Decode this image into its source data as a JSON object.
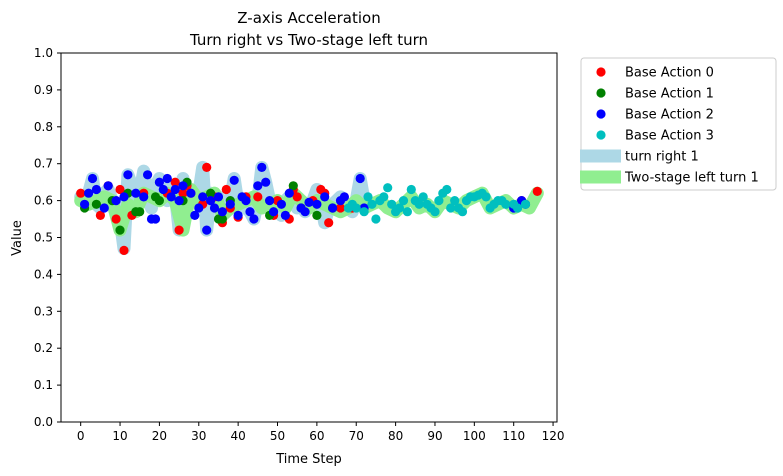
{
  "chart_data": {
    "type": "scatter",
    "title": "Z-axis Acceleration",
    "subtitle": "Turn right vs Two-stage left turn",
    "xlabel": "Time Step",
    "ylabel": "Value",
    "xlim": [
      -5,
      121
    ],
    "ylim": [
      0,
      1
    ],
    "xticks": [
      0,
      10,
      20,
      30,
      40,
      50,
      60,
      70,
      80,
      90,
      100,
      110,
      120
    ],
    "yticks": [
      0.0,
      0.1,
      0.2,
      0.3,
      0.4,
      0.5,
      0.6,
      0.7,
      0.8,
      0.9,
      1.0
    ],
    "ytick_labels": [
      "0.0",
      "0.1",
      "0.2",
      "0.3",
      "0.4",
      "0.5",
      "0.6",
      "0.7",
      "0.8",
      "0.9",
      "1.0"
    ],
    "grid": false,
    "legend_position": "outside right, top",
    "bands": [
      {
        "name": "turn right 1",
        "color": "#add8e6",
        "x": [
          0,
          1,
          2,
          3,
          4,
          5,
          6,
          7,
          8,
          9,
          10,
          11,
          12,
          13,
          14,
          15,
          16,
          17,
          18,
          19,
          20,
          21,
          22,
          23,
          24,
          25,
          26,
          27,
          28,
          29,
          30,
          31,
          32,
          33,
          34,
          35,
          36,
          37,
          38,
          39,
          40,
          41,
          42,
          43,
          44,
          45,
          46,
          47,
          48,
          49,
          50,
          51,
          52,
          53,
          54,
          55,
          56,
          57,
          58,
          59,
          60,
          61,
          62,
          63,
          64,
          65,
          66,
          67,
          68,
          69,
          70,
          71,
          72
        ],
        "y": [
          0.61,
          0.6,
          0.62,
          0.66,
          0.59,
          0.58,
          0.62,
          0.63,
          0.6,
          0.59,
          0.55,
          0.47,
          0.67,
          0.64,
          0.58,
          0.62,
          0.68,
          0.61,
          0.58,
          0.64,
          0.66,
          0.62,
          0.6,
          0.64,
          0.62,
          0.52,
          0.66,
          0.6,
          0.62,
          0.6,
          0.62,
          0.69,
          0.52,
          0.62,
          0.6,
          0.61,
          0.58,
          0.57,
          0.6,
          0.66,
          0.59,
          0.6,
          0.58,
          0.57,
          0.55,
          0.6,
          0.69,
          0.65,
          0.6,
          0.57,
          0.58,
          0.56,
          0.6,
          0.61,
          0.62,
          0.58,
          0.59,
          0.57,
          0.59,
          0.6,
          0.63,
          0.6,
          0.54,
          0.58,
          0.59,
          0.6,
          0.61,
          0.58,
          0.59,
          0.57,
          0.6,
          0.66,
          0.6
        ]
      },
      {
        "name": "Two-stage left turn 1",
        "color": "#90ee90",
        "x": [
          0,
          2,
          4,
          6,
          8,
          10,
          12,
          14,
          16,
          18,
          20,
          22,
          24,
          26,
          28,
          30,
          32,
          34,
          36,
          38,
          40,
          42,
          44,
          46,
          48,
          50,
          52,
          54,
          56,
          58,
          60,
          62,
          64,
          66,
          68,
          70,
          72,
          74,
          76,
          78,
          80,
          82,
          84,
          86,
          88,
          90,
          92,
          94,
          96,
          98,
          100,
          102,
          104,
          106,
          108,
          110,
          112,
          114,
          116
        ],
        "y": [
          0.6,
          0.59,
          0.6,
          0.61,
          0.6,
          0.52,
          0.59,
          0.57,
          0.62,
          0.61,
          0.6,
          0.62,
          0.6,
          0.52,
          0.63,
          0.6,
          0.61,
          0.62,
          0.56,
          0.58,
          0.59,
          0.6,
          0.61,
          0.58,
          0.59,
          0.6,
          0.58,
          0.62,
          0.6,
          0.58,
          0.6,
          0.59,
          0.58,
          0.57,
          0.58,
          0.6,
          0.58,
          0.59,
          0.6,
          0.58,
          0.57,
          0.59,
          0.61,
          0.58,
          0.59,
          0.57,
          0.6,
          0.59,
          0.58,
          0.6,
          0.61,
          0.62,
          0.58,
          0.59,
          0.6,
          0.58,
          0.59,
          0.58,
          0.62
        ]
      }
    ],
    "series": [
      {
        "name": "Base Action 0",
        "color": "#ff0000",
        "x": [
          0,
          5,
          7,
          9,
          10,
          11,
          13,
          16,
          22,
          24,
          25,
          26,
          27,
          28,
          31,
          32,
          34,
          36,
          37,
          38,
          40,
          42,
          45,
          49,
          50,
          53,
          54,
          55,
          59,
          61,
          62,
          63,
          66,
          69,
          112,
          116
        ],
        "y": [
          0.62,
          0.56,
          0.64,
          0.55,
          0.63,
          0.465,
          0.56,
          0.62,
          0.62,
          0.65,
          0.52,
          0.62,
          0.64,
          0.62,
          0.59,
          0.69,
          0.61,
          0.54,
          0.63,
          0.58,
          0.555,
          0.61,
          0.61,
          0.56,
          0.6,
          0.55,
          0.63,
          0.61,
          0.6,
          0.63,
          0.62,
          0.54,
          0.58,
          0.58,
          0.6,
          0.625
        ]
      },
      {
        "name": "Base Action 1",
        "color": "#008000",
        "x": [
          1,
          4,
          8,
          10,
          12,
          14,
          15,
          19,
          20,
          26,
          27,
          33,
          35,
          36,
          38,
          48,
          54,
          56,
          60,
          64
        ],
        "y": [
          0.58,
          0.59,
          0.6,
          0.52,
          0.62,
          0.57,
          0.57,
          0.61,
          0.6,
          0.6,
          0.65,
          0.62,
          0.55,
          0.55,
          0.6,
          0.56,
          0.64,
          0.58,
          0.56,
          0.58
        ]
      },
      {
        "name": "Base Action 2",
        "color": "#0000ff",
        "x": [
          1,
          2,
          3,
          4,
          6,
          7,
          9,
          11,
          12,
          14,
          16,
          17,
          18,
          19,
          20,
          21,
          22,
          23,
          24,
          25,
          26,
          28,
          29,
          30,
          31,
          32,
          33,
          34,
          35,
          36,
          38,
          39,
          40,
          41,
          42,
          43,
          44,
          45,
          46,
          47,
          48,
          49,
          51,
          52,
          53,
          56,
          57,
          58,
          60,
          62,
          64,
          66,
          67,
          71,
          72,
          110,
          112,
          113
        ],
        "y": [
          0.59,
          0.62,
          0.66,
          0.63,
          0.58,
          0.64,
          0.6,
          0.61,
          0.67,
          0.62,
          0.61,
          0.67,
          0.55,
          0.55,
          0.65,
          0.63,
          0.66,
          0.61,
          0.63,
          0.6,
          0.64,
          0.62,
          0.56,
          0.58,
          0.61,
          0.52,
          0.6,
          0.58,
          0.61,
          0.57,
          0.59,
          0.655,
          0.56,
          0.61,
          0.6,
          0.57,
          0.55,
          0.64,
          0.69,
          0.65,
          0.6,
          0.57,
          0.59,
          0.56,
          0.62,
          0.58,
          0.57,
          0.595,
          0.59,
          0.61,
          0.58,
          0.6,
          0.61,
          0.66,
          0.58,
          0.58,
          0.6,
          0.59
        ]
      },
      {
        "name": "Base Action 3",
        "color": "#00bfbf",
        "x": [
          68,
          69,
          70,
          72,
          73,
          74,
          75,
          76,
          77,
          78,
          79,
          80,
          81,
          82,
          83,
          84,
          85,
          86,
          87,
          88,
          89,
          90,
          91,
          92,
          93,
          94,
          95,
          96,
          97,
          98,
          99,
          100,
          101,
          102,
          103,
          104,
          105,
          106,
          107,
          108,
          110,
          111,
          113
        ],
        "y": [
          0.58,
          0.59,
          0.58,
          0.57,
          0.61,
          0.59,
          0.55,
          0.6,
          0.61,
          0.635,
          0.59,
          0.57,
          0.58,
          0.6,
          0.57,
          0.63,
          0.6,
          0.59,
          0.61,
          0.59,
          0.58,
          0.57,
          0.6,
          0.62,
          0.63,
          0.58,
          0.6,
          0.58,
          0.57,
          0.6,
          0.61,
          0.61,
          0.615,
          0.62,
          0.61,
          0.58,
          0.59,
          0.6,
          0.6,
          0.59,
          0.59,
          0.58,
          0.59
        ]
      }
    ]
  }
}
